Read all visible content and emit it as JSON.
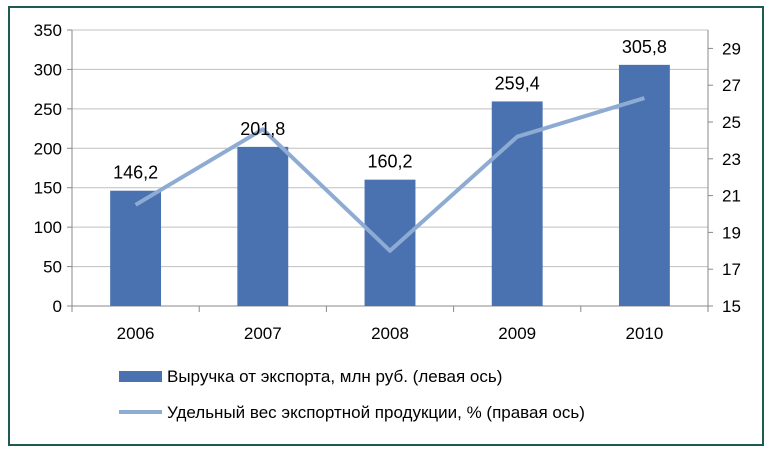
{
  "chart_data": {
    "type": "bar",
    "categories": [
      "2006",
      "2007",
      "2008",
      "2009",
      "2010"
    ],
    "series": [
      {
        "name": "Выручка от экспорта, млн руб. (левая ось)",
        "type": "bar",
        "axis": "left",
        "values": [
          146.2,
          201.8,
          160.2,
          259.4,
          305.8
        ],
        "data_labels": [
          "146,2",
          "201,8",
          "160,2",
          "259,4",
          "305,8"
        ],
        "color": "#4a72b0"
      },
      {
        "name": "Удельный вес экспортной продукции, % (правая ось)",
        "type": "line",
        "axis": "right",
        "values": [
          20.5,
          24.6,
          18.0,
          24.2,
          26.3
        ],
        "color": "#8eabd3"
      }
    ],
    "y_left": {
      "min": 0,
      "max": 350,
      "ticks": [
        0,
        50,
        100,
        150,
        200,
        250,
        300,
        350
      ]
    },
    "y_right": {
      "min": 15,
      "max": 30,
      "ticks": [
        15,
        17,
        19,
        21,
        23,
        25,
        27,
        29
      ]
    },
    "grid": true,
    "legend": "bottom",
    "frame_color": "#1c5c52",
    "grid_color": "#c0c0c0"
  }
}
